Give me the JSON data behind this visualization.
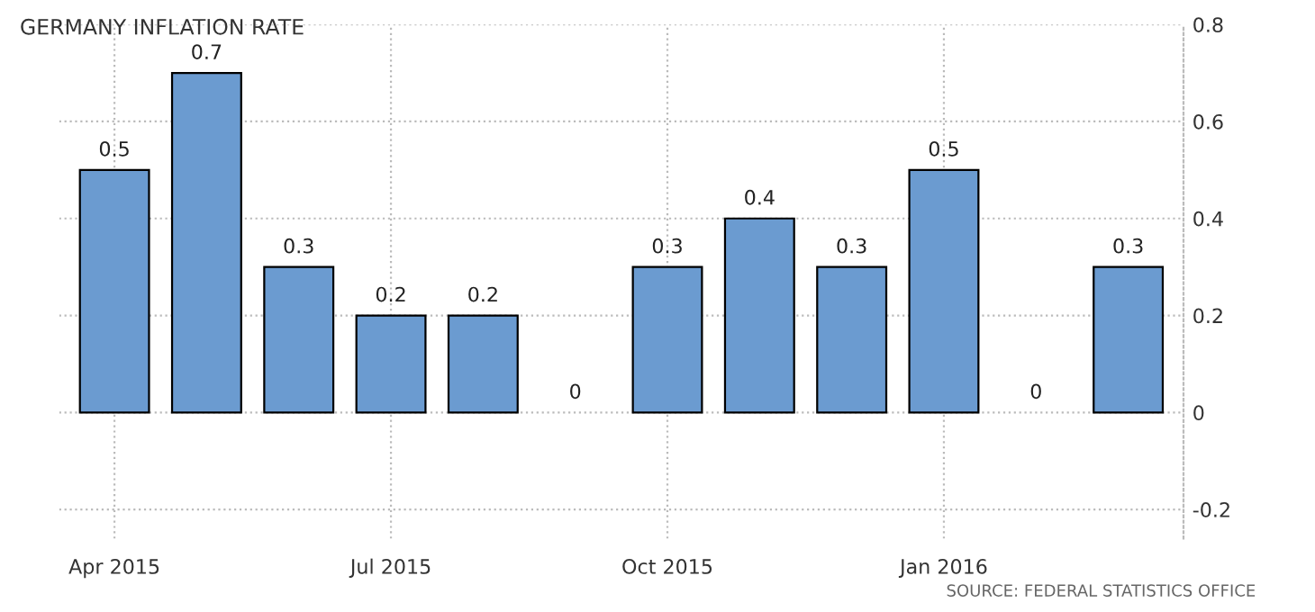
{
  "chart_data": {
    "type": "bar",
    "title": "GERMANY INFLATION RATE",
    "categories": [
      "Apr 2015",
      null,
      null,
      "Jul 2015",
      null,
      null,
      "Oct 2015",
      null,
      null,
      "Jan 2016",
      null,
      null
    ],
    "values": [
      0.5,
      0.7,
      0.3,
      0.2,
      0.2,
      0,
      0.3,
      0.4,
      0.3,
      0.5,
      0,
      0.3
    ],
    "color": "#6b9bd0",
    "ylim": [
      -0.26,
      0.8
    ],
    "yticks": [
      -0.2,
      0,
      0.2,
      0.4,
      0.6,
      0.8
    ],
    "grid": true,
    "data_labels": true,
    "annotations": [
      "SOURCE: FEDERAL STATISTICS OFFICE"
    ]
  }
}
